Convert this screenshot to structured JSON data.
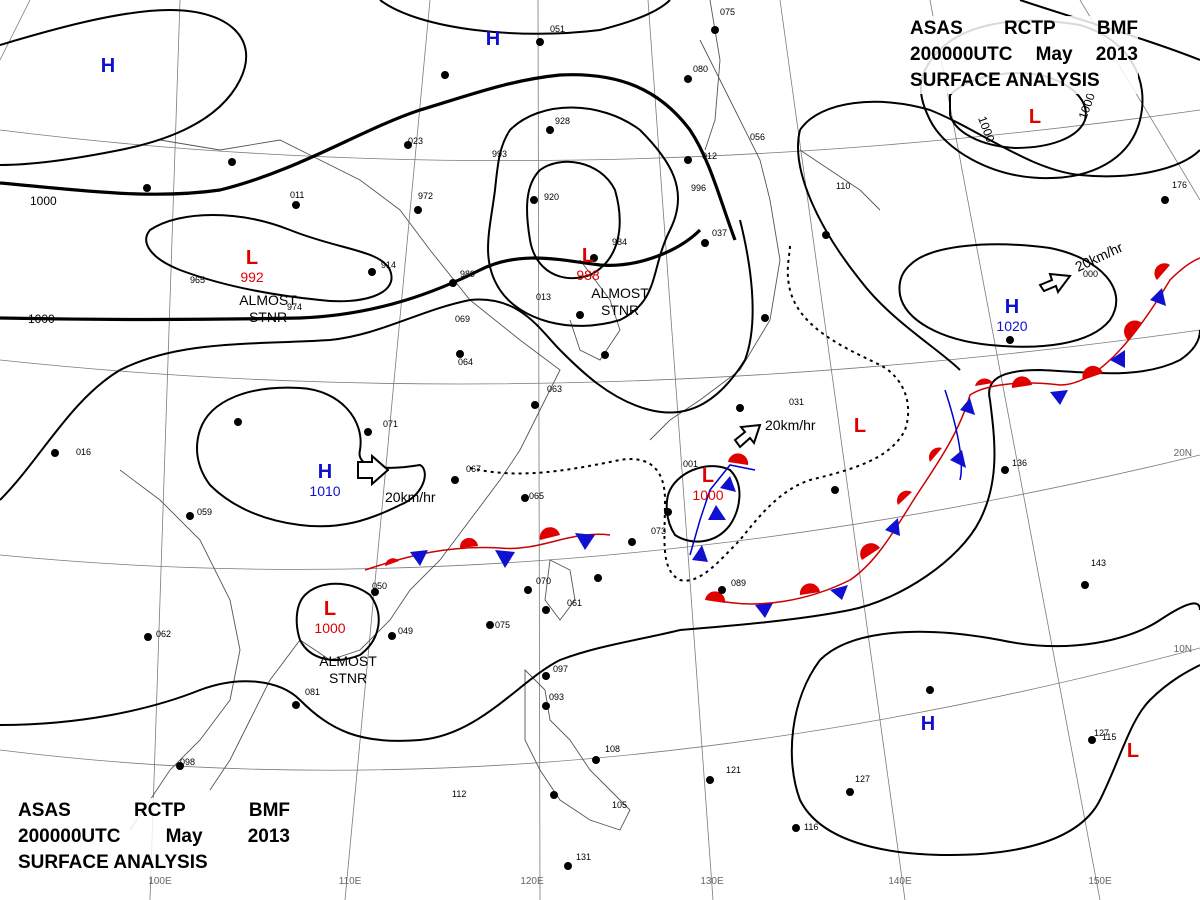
{
  "title": {
    "line1": [
      "ASAS",
      "RCTP",
      "BMF"
    ],
    "line2": [
      "200000UTC",
      "May",
      "2013"
    ],
    "line3": "SURFACE ANALYSIS"
  },
  "colors": {
    "high": "#1010d0",
    "low": "#e00000",
    "isobar": "#000000",
    "grid": "#777777"
  },
  "longitudes": [
    {
      "label": "100E"
    },
    {
      "label": "110E"
    },
    {
      "label": "120E"
    },
    {
      "label": "130E"
    },
    {
      "label": "140E"
    },
    {
      "label": "150E"
    }
  ],
  "latitudes": [
    {
      "label": "10N"
    },
    {
      "label": "20N"
    }
  ],
  "isobar_labels": [
    "1000",
    "1000",
    "1000",
    "1000"
  ],
  "pressure_centers": [
    {
      "type": "H",
      "value": ""
    },
    {
      "type": "H",
      "value": ""
    },
    {
      "type": "L",
      "value": "992"
    },
    {
      "type": "L",
      "value": "988"
    },
    {
      "type": "H",
      "value": "1010"
    },
    {
      "type": "L",
      "value": "1000"
    },
    {
      "type": "L",
      "value": "1000"
    },
    {
      "type": "H",
      "value": "1020"
    },
    {
      "type": "L",
      "value": ""
    },
    {
      "type": "L",
      "value": ""
    },
    {
      "type": "H",
      "value": ""
    },
    {
      "type": "L",
      "value": ""
    }
  ],
  "motion_notes": [
    "ALMOST STNR",
    "ALMOST STNR",
    "ALMOST STNR"
  ],
  "speed_notes": [
    "20km/hr",
    "20km/hr",
    "20km/hr"
  ],
  "station_labels": [
    "051",
    "928",
    "920",
    "984",
    "914",
    "989",
    "013",
    "069",
    "064",
    "063",
    "071",
    "067",
    "065",
    "061",
    "070",
    "075",
    "049",
    "050",
    "081",
    "097",
    "093",
    "108",
    "112",
    "131",
    "105",
    "121",
    "116",
    "127",
    "143",
    "136",
    "127",
    "176",
    "110",
    "098",
    "059",
    "062",
    "016",
    "972",
    "011",
    "023",
    "965",
    "974",
    "993",
    "996",
    "012",
    "037",
    "056",
    "075",
    "080",
    "031",
    "089",
    "073",
    "001",
    "000",
    "115"
  ]
}
